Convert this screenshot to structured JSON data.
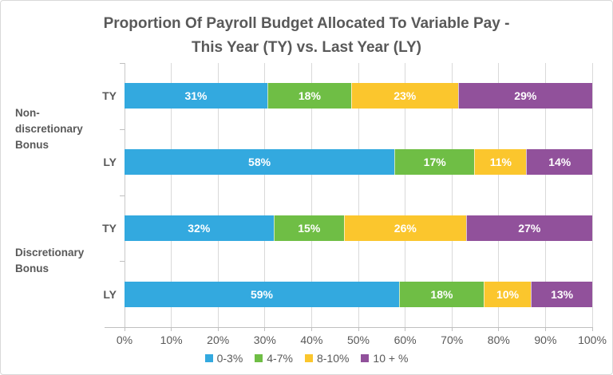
{
  "chart_data": {
    "type": "bar",
    "orientation": "horizontal",
    "stacked": true,
    "title": "Proportion Of Payroll Budget Allocated To Variable Pay - This Year (TY) vs. Last Year (LY)",
    "title_lines": [
      "Proportion Of Payroll Budget Allocated To Variable Pay -",
      "This Year (TY) vs. Last Year (LY)"
    ],
    "categories": [
      "TY",
      "LY",
      "TY",
      "LY"
    ],
    "groups": [
      {
        "label": "Non-discretionary Bonus",
        "label_lines": "Non-\ndiscretionary\nBonus",
        "span": 2
      },
      {
        "label": "Discretionary Bonus",
        "label_lines": "Discretionary\nBonus",
        "span": 2
      }
    ],
    "series": [
      {
        "name": "0-3%",
        "color": "#33A9DF",
        "values": [
          31,
          58,
          32,
          59
        ]
      },
      {
        "name": "4-7%",
        "color": "#6FBE45",
        "values": [
          18,
          17,
          15,
          18
        ]
      },
      {
        "name": "8-10%",
        "color": "#FBC62D",
        "values": [
          23,
          11,
          26,
          10
        ]
      },
      {
        "name": "10 + %",
        "color": "#91519B",
        "values": [
          29,
          14,
          27,
          13
        ]
      }
    ],
    "data_label_suffix": "%",
    "xlim": [
      0,
      100
    ],
    "x_tick_labels": [
      "0%",
      "10%",
      "20%",
      "30%",
      "40%",
      "50%",
      "60%",
      "70%",
      "80%",
      "90%",
      "100%"
    ],
    "grid": true,
    "legend_position": "bottom"
  },
  "colors": {
    "background": "#FFFFFF",
    "chart_border": "#D9D9D9",
    "title_text": "#595959",
    "axis_text": "#595959",
    "gridline": "#D9D9D9",
    "axis_line": "#BFBFBF",
    "data_label_text": "#FFFFFF"
  }
}
